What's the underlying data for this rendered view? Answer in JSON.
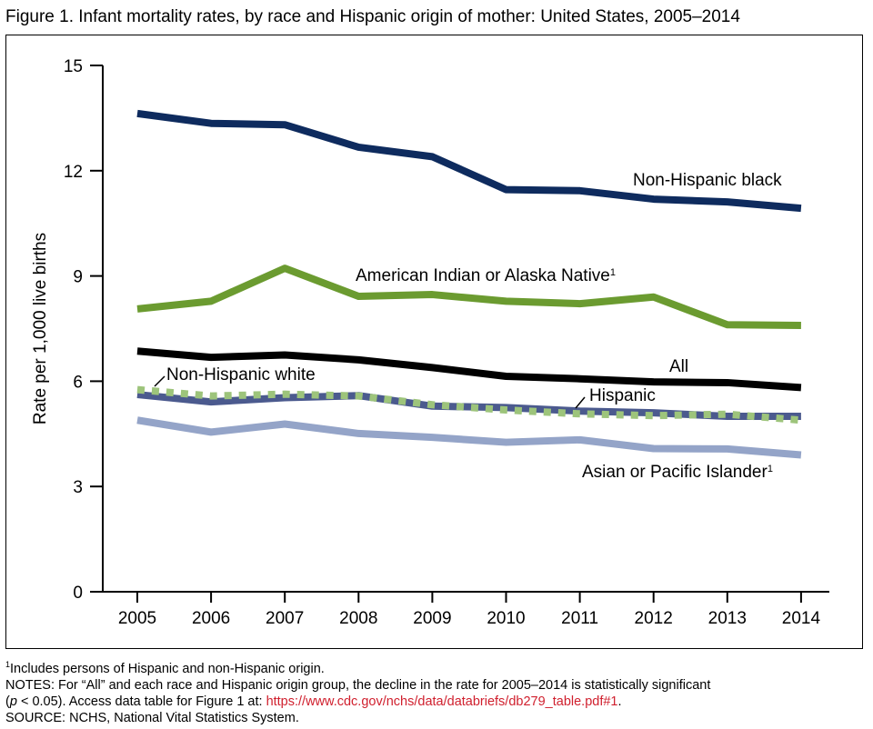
{
  "title": "Figure 1. Infant mortality rates, by race and Hispanic origin of mother: United States, 2005–2014",
  "chart_data": {
    "type": "line",
    "title": "Figure 1. Infant mortality rates, by race and Hispanic origin of mother: United States, 2005–2014",
    "xlabel": "",
    "ylabel": "Rate per 1,000 live births",
    "ylim": [
      0,
      15
    ],
    "yticks": [
      "0",
      "3",
      "6",
      "9",
      "12",
      "15"
    ],
    "x": [
      "2005",
      "2006",
      "2007",
      "2008",
      "2009",
      "2010",
      "2011",
      "2012",
      "2013",
      "2014"
    ],
    "grid": false,
    "series": [
      {
        "name": "Non-Hispanic black",
        "label": "Non-Hispanic black",
        "sup": "",
        "color": "#0e2b5e",
        "dash": false,
        "values": [
          13.63,
          13.35,
          13.31,
          12.67,
          12.4,
          11.46,
          11.43,
          11.19,
          11.11,
          10.93
        ]
      },
      {
        "name": "American Indian or Alaska Native",
        "label": "American Indian or Alaska Native",
        "sup": "1",
        "color": "#6b9b30",
        "dash": false,
        "values": [
          8.06,
          8.28,
          9.22,
          8.42,
          8.47,
          8.28,
          8.21,
          8.4,
          7.61,
          7.59
        ]
      },
      {
        "name": "All",
        "label": "All",
        "sup": "",
        "color": "#000000",
        "dash": false,
        "values": [
          6.86,
          6.68,
          6.75,
          6.61,
          6.39,
          6.14,
          6.07,
          5.98,
          5.96,
          5.82
        ]
      },
      {
        "name": "Hispanic",
        "label": "Hispanic",
        "sup": "",
        "color": "#4b5a8e",
        "dash": false,
        "values": [
          5.62,
          5.41,
          5.53,
          5.59,
          5.29,
          5.25,
          5.15,
          5.1,
          5.0,
          5.0
        ]
      },
      {
        "name": "Non-Hispanic white",
        "label": "Non-Hispanic white",
        "sup": "",
        "color": "#9dc47b",
        "dash": true,
        "values": [
          5.76,
          5.58,
          5.63,
          5.58,
          5.33,
          5.18,
          5.07,
          5.02,
          5.06,
          4.89
        ]
      },
      {
        "name": "Asian or Pacific Islander",
        "label": "Asian or Pacific Islander",
        "sup": "1",
        "color": "#94a4c8",
        "dash": false,
        "values": [
          4.89,
          4.55,
          4.78,
          4.51,
          4.4,
          4.26,
          4.33,
          4.08,
          4.07,
          3.9
        ]
      }
    ]
  },
  "footer": {
    "footnote_sup": "1",
    "footnote": "Includes persons of Hispanic and non-Hispanic origin.",
    "notes_line1": "NOTES: For “All” and each race and Hispanic origin group, the decline in the rate for 2005–2014 is statistically significant",
    "notes_p": "p",
    "notes_line2": " < 0.05). Access data table for Figure 1 at: ",
    "link": "https://www.cdc.gov/nchs/data/databriefs/db279_table.pdf#1",
    "source": "SOURCE: NCHS, National Vital Statistics System."
  }
}
